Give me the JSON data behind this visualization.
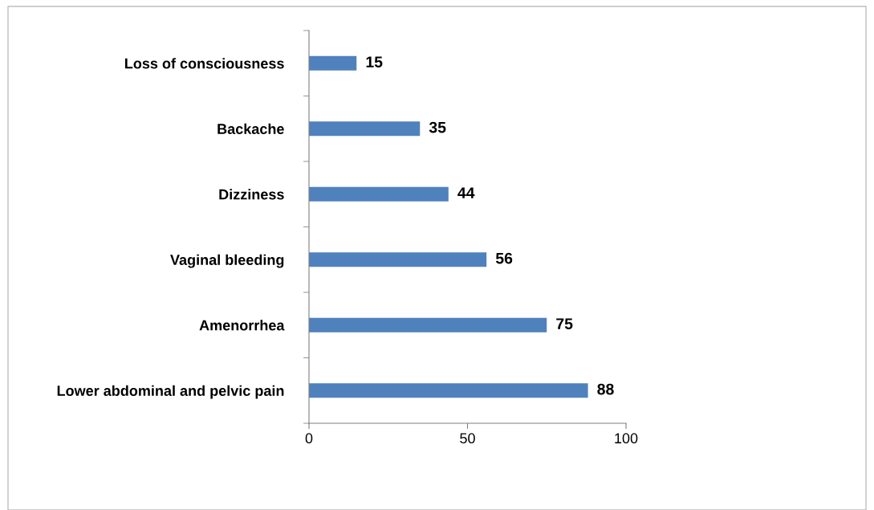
{
  "chart_data": {
    "type": "bar",
    "orientation": "horizontal",
    "categories": [
      "Loss of consciousness",
      "Backache",
      "Dizziness",
      "Vaginal bleeding",
      "Amenorrhea",
      "Lower abdominal and pelvic pain"
    ],
    "values": [
      15,
      35,
      44,
      56,
      75,
      88
    ],
    "color": "#4f81bd",
    "xlim": [
      0,
      100
    ],
    "xticks": [
      0,
      50,
      100
    ],
    "data_labels": true,
    "grid": false,
    "legend": false
  }
}
